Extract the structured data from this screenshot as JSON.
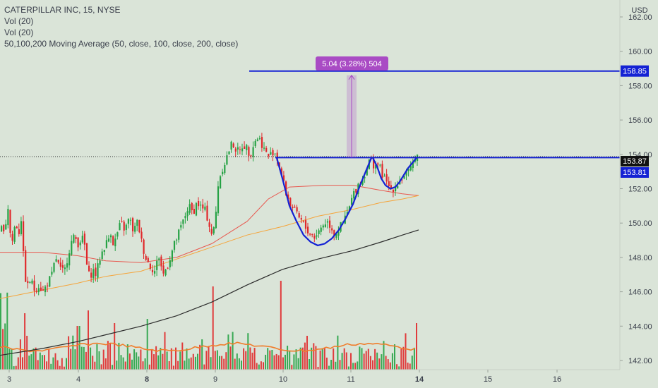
{
  "header": {
    "symbol_line": "CATERPILLAR INC, 15, NYSE",
    "vol_line_1": "Vol (20)",
    "vol_line_2": "Vol (20)",
    "ma_line": "50,100,200 Moving Average (50, close, 100, close, 200, close)"
  },
  "price_axis": {
    "currency": "USD",
    "ticks": [
      "162.00",
      "160.00",
      "158.00",
      "156.00",
      "154.00",
      "152.00",
      "150.00",
      "148.00",
      "146.00",
      "144.00",
      "142.00"
    ],
    "last_price_label": "153.87",
    "level_label": "153.81",
    "target_label": "158.85"
  },
  "time_axis": {
    "ticks": [
      "3",
      "4",
      "8",
      "9",
      "10",
      "11",
      "14",
      "15",
      "16"
    ]
  },
  "measure_tool": {
    "label": "5.04 (3.28%) 504"
  },
  "colors": {
    "background": "#dae4d8",
    "up_candle": "#26a245",
    "down_candle": "#e0282b",
    "pattern_blue": "#1422d4",
    "ma50": "#e8584f",
    "ma100": "#f5a43a",
    "ma200": "#2b2b2b",
    "measure": "#a94bc4",
    "volume_ma": "#f07d2b"
  },
  "chart_data": {
    "type": "candlestick",
    "title": "CATERPILLAR INC, 15, NYSE",
    "ylim": [
      141.6,
      163.4
    ],
    "x_labels": [
      "3",
      "4",
      "8",
      "9",
      "10",
      "11",
      "14",
      "15",
      "16"
    ],
    "resistance_level": 153.81,
    "last_price": 153.87,
    "target_level": 158.85,
    "measured_move": {
      "change": 5.04,
      "percent": 3.28,
      "ticks": 504
    },
    "price_path": [
      [
        0,
        149.4
      ],
      [
        3,
        150.2
      ],
      [
        6,
        149.0
      ],
      [
        9,
        151.6
      ],
      [
        13,
        149.5
      ],
      [
        17,
        148.9
      ],
      [
        21,
        150.2
      ],
      [
        25,
        149.3
      ],
      [
        29,
        150.3
      ],
      [
        33,
        147.4
      ],
      [
        37,
        146.2
      ],
      [
        42,
        146.7
      ],
      [
        48,
        146.1
      ],
      [
        54,
        146.4
      ],
      [
        60,
        146.0
      ],
      [
        66,
        146.5
      ],
      [
        72,
        146.9
      ],
      [
        78,
        148.0
      ],
      [
        84,
        147.3
      ],
      [
        90,
        147.1
      ],
      [
        96,
        148.3
      ],
      [
        101,
        149.0
      ],
      [
        105,
        149.2
      ],
      [
        109,
        148.8
      ],
      [
        114,
        149.1
      ],
      [
        118,
        149.0
      ],
      [
        122,
        147.5
      ],
      [
        126,
        146.8
      ],
      [
        130,
        147.3
      ],
      [
        135,
        147.0
      ],
      [
        140,
        147.9
      ],
      [
        146,
        148.6
      ],
      [
        152,
        149.0
      ],
      [
        156,
        149.5
      ],
      [
        160,
        148.7
      ],
      [
        165,
        149.4
      ],
      [
        170,
        150.0
      ],
      [
        176,
        149.6
      ],
      [
        182,
        150.3
      ],
      [
        188,
        149.5
      ],
      [
        194,
        150.1
      ],
      [
        200,
        148.8
      ],
      [
        206,
        147.9
      ],
      [
        212,
        147.5
      ],
      [
        218,
        147.2
      ],
      [
        224,
        148.1
      ],
      [
        230,
        147.0
      ],
      [
        236,
        147.5
      ],
      [
        242,
        148.3
      ],
      [
        248,
        149.0
      ],
      [
        254,
        149.6
      ],
      [
        260,
        150.3
      ],
      [
        266,
        151.0
      ],
      [
        272,
        150.6
      ],
      [
        278,
        151.2
      ],
      [
        284,
        150.9
      ],
      [
        290,
        150.7
      ],
      [
        296,
        149.8
      ],
      [
        300,
        149.2
      ],
      [
        304,
        150.2
      ],
      [
        308,
        152.3
      ],
      [
        313,
        153.1
      ],
      [
        318,
        153.6
      ],
      [
        323,
        154.2
      ],
      [
        328,
        154.7
      ],
      [
        333,
        154.3
      ],
      [
        338,
        154.1
      ],
      [
        343,
        154.6
      ],
      [
        348,
        154.4
      ],
      [
        353,
        154.0
      ],
      [
        358,
        154.6
      ],
      [
        363,
        155.0
      ],
      [
        368,
        154.8
      ],
      [
        373,
        154.3
      ],
      [
        378,
        153.9
      ],
      [
        383,
        154.0
      ],
      [
        387,
        154.3
      ],
      [
        391,
        153.8
      ],
      [
        395,
        153.3
      ],
      [
        400,
        152.4
      ],
      [
        405,
        151.6
      ],
      [
        410,
        151.1
      ],
      [
        415,
        150.8
      ],
      [
        420,
        150.4
      ],
      [
        426,
        150.1
      ],
      [
        432,
        149.7
      ],
      [
        438,
        149.4
      ],
      [
        444,
        149.2
      ],
      [
        450,
        149.5
      ],
      [
        456,
        149.9
      ],
      [
        462,
        150.1
      ],
      [
        468,
        149.8
      ],
      [
        473,
        149.3
      ],
      [
        478,
        149.6
      ],
      [
        483,
        149.9
      ],
      [
        488,
        150.3
      ],
      [
        493,
        150.8
      ],
      [
        498,
        151.5
      ],
      [
        503,
        152.0
      ],
      [
        508,
        152.4
      ],
      [
        513,
        152.6
      ],
      [
        518,
        153.2
      ],
      [
        523,
        153.7
      ],
      [
        528,
        153.4
      ],
      [
        533,
        153.5
      ],
      [
        538,
        153.1
      ],
      [
        543,
        152.6
      ],
      [
        548,
        152.2
      ],
      [
        553,
        152.0
      ],
      [
        558,
        152.1
      ],
      [
        563,
        152.4
      ],
      [
        568,
        152.6
      ],
      [
        573,
        152.9
      ],
      [
        578,
        152.9
      ],
      [
        582,
        153.2
      ],
      [
        586,
        153.9
      ],
      [
        590,
        154.0
      ],
      [
        593,
        153.7
      ]
    ],
    "moving_averages": [
      {
        "name": "MA 50",
        "points": [
          [
            0,
            148.3
          ],
          [
            60,
            148.3
          ],
          [
            110,
            148.1
          ],
          [
            150,
            147.8
          ],
          [
            200,
            147.7
          ],
          [
            250,
            148.0
          ],
          [
            300,
            148.8
          ],
          [
            350,
            150.1
          ],
          [
            380,
            151.4
          ],
          [
            410,
            152.1
          ],
          [
            460,
            152.2
          ],
          [
            500,
            152.2
          ],
          [
            540,
            151.9
          ],
          [
            570,
            151.7
          ],
          [
            593,
            151.6
          ]
        ]
      },
      {
        "name": "MA 100",
        "points": [
          [
            0,
            145.6
          ],
          [
            60,
            146.1
          ],
          [
            110,
            146.5
          ],
          [
            150,
            146.9
          ],
          [
            200,
            147.2
          ],
          [
            250,
            147.9
          ],
          [
            300,
            148.6
          ],
          [
            350,
            149.3
          ],
          [
            400,
            149.8
          ],
          [
            450,
            150.4
          ],
          [
            500,
            150.8
          ],
          [
            540,
            151.2
          ],
          [
            570,
            151.4
          ],
          [
            593,
            151.6
          ]
        ]
      },
      {
        "name": "MA 200",
        "points": [
          [
            0,
            142.3
          ],
          [
            60,
            142.7
          ],
          [
            110,
            143.1
          ],
          [
            150,
            143.5
          ],
          [
            200,
            144.0
          ],
          [
            250,
            144.6
          ],
          [
            300,
            145.4
          ],
          [
            350,
            146.4
          ],
          [
            400,
            147.3
          ],
          [
            450,
            147.9
          ],
          [
            500,
            148.4
          ],
          [
            540,
            148.9
          ],
          [
            570,
            149.3
          ],
          [
            593,
            149.6
          ]
        ]
      }
    ],
    "cup_pattern": [
      [
        392,
        153.8
      ],
      [
        400,
        152.6
      ],
      [
        410,
        151.0
      ],
      [
        420,
        150.1
      ],
      [
        430,
        149.3
      ],
      [
        440,
        148.9
      ],
      [
        450,
        148.7
      ],
      [
        460,
        148.8
      ],
      [
        470,
        149.1
      ],
      [
        480,
        149.6
      ],
      [
        490,
        150.3
      ],
      [
        500,
        151.1
      ],
      [
        510,
        152.2
      ],
      [
        520,
        153.2
      ],
      [
        526,
        153.8
      ]
    ],
    "handle_pattern": [
      [
        528,
        153.8
      ],
      [
        534,
        153.3
      ],
      [
        540,
        152.6
      ],
      [
        546,
        152.2
      ],
      [
        553,
        152.0
      ],
      [
        560,
        152.1
      ],
      [
        566,
        152.4
      ],
      [
        572,
        152.8
      ],
      [
        578,
        153.2
      ],
      [
        584,
        153.5
      ],
      [
        590,
        153.8
      ]
    ]
  }
}
